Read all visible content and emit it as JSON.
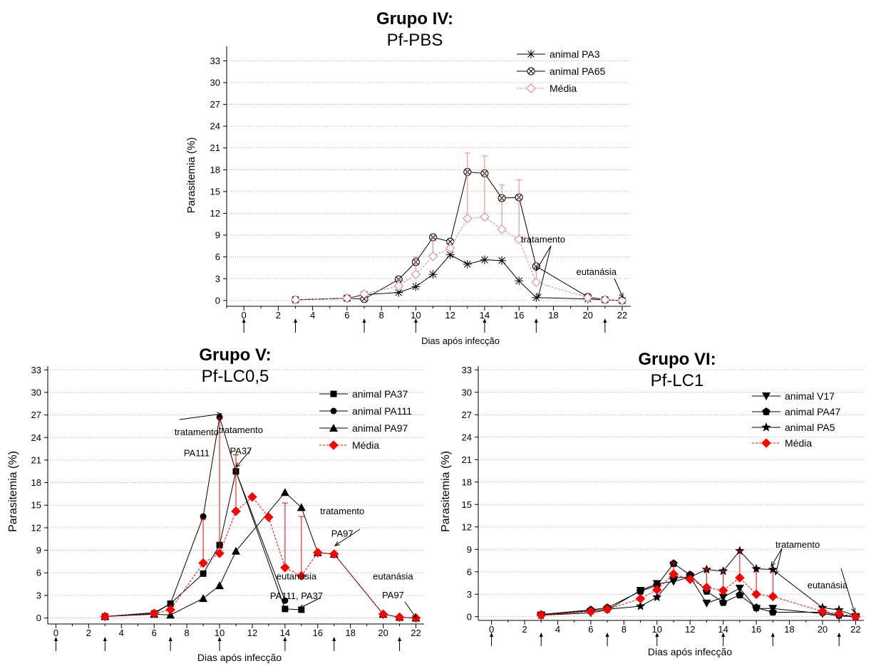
{
  "chart_data": [
    {
      "type": "line",
      "title": "Grupo IV:",
      "subtitle": "Pf-PBS",
      "xlabel": "Dias após infecção",
      "ylabel": "Parasitemia  (%)",
      "xlim": [
        -1,
        22.5
      ],
      "ylim": [
        -0.8,
        35
      ],
      "xticks": [
        0,
        2,
        4,
        6,
        8,
        10,
        12,
        14,
        16,
        18,
        20,
        22
      ],
      "yticks": [
        0,
        3,
        6,
        9,
        12,
        15,
        18,
        21,
        24,
        27,
        30,
        33
      ],
      "grid": true,
      "legend_position": "top-right",
      "arrow_days": [
        0,
        3,
        7,
        10,
        14,
        17,
        21
      ],
      "series": [
        {
          "name": "animal PA3",
          "marker": "asterisk",
          "color": "#000000",
          "style": "solid",
          "x": [
            3,
            6,
            7,
            9,
            10,
            11,
            12,
            13,
            14,
            15,
            16,
            17,
            20,
            21,
            22
          ],
          "y": [
            0.1,
            0.3,
            0.8,
            1.1,
            1.9,
            3.6,
            6.3,
            5.0,
            5.6,
            5.5,
            2.7,
            0.4,
            0.2,
            0.1,
            0.0
          ]
        },
        {
          "name": "animal PA65",
          "marker": "circle-x",
          "color": "#000000",
          "style": "solid",
          "x": [
            3,
            6,
            7,
            9,
            10,
            11,
            12,
            13,
            14,
            15,
            16,
            17,
            20,
            21,
            22
          ],
          "y": [
            0.1,
            0.3,
            0.2,
            2.9,
            5.3,
            8.7,
            8.1,
            17.7,
            17.5,
            14.1,
            14.2,
            4.7,
            0.5,
            0.1,
            0.0
          ]
        },
        {
          "name": "Média",
          "marker": "diamond-open",
          "color": "#f08080",
          "style": "dotted",
          "x": [
            3,
            6,
            7,
            9,
            10,
            11,
            12,
            13,
            14,
            15,
            16,
            17,
            20,
            21,
            22
          ],
          "y": [
            0.1,
            0.3,
            0.9,
            2.0,
            3.6,
            6.1,
            7.2,
            11.3,
            11.5,
            9.8,
            8.4,
            2.5,
            0.4,
            0.1,
            0.0
          ],
          "error": [
            0,
            0,
            0,
            0.9,
            2.4,
            2.6,
            0,
            9.0,
            8.4,
            6.1,
            8.2,
            2.2,
            0,
            0,
            0
          ]
        }
      ],
      "annotations": [
        {
          "text": "tratamento",
          "x": 17.4,
          "y": 8.0
        },
        {
          "text": "eutanásia",
          "x": 20.5,
          "y": 3.5
        }
      ]
    },
    {
      "type": "line",
      "title": "Grupo V:",
      "subtitle": "Pf-LC0,5",
      "xlabel": "Dias após infecção",
      "ylabel": "Parasitemia (%)",
      "xlim": [
        -0.5,
        22.5
      ],
      "ylim": [
        -0.8,
        33.5
      ],
      "xticks": [
        0,
        2,
        4,
        6,
        8,
        10,
        12,
        14,
        16,
        18,
        20,
        22
      ],
      "yticks": [
        0,
        3,
        6,
        9,
        12,
        15,
        18,
        21,
        24,
        27,
        30,
        33
      ],
      "grid": true,
      "legend_position": "top-right",
      "arrow_days": [
        0,
        3,
        7,
        10,
        14,
        17,
        21
      ],
      "series": [
        {
          "name": "animal PA37",
          "marker": "square",
          "color": "#000000",
          "style": "solid",
          "x": [
            3,
            6,
            7,
            9,
            10,
            11,
            14,
            15
          ],
          "y": [
            0.2,
            0.6,
            1.9,
            5.9,
            9.7,
            19.5,
            1.2,
            1.1
          ]
        },
        {
          "name": "animal PA111",
          "marker": "circle",
          "color": "#000000",
          "style": "solid",
          "x": [
            3,
            6,
            7,
            9,
            10,
            11,
            14
          ],
          "y": [
            0.2,
            0.7,
            1.9,
            13.5,
            26.7,
            19.5,
            2.3
          ]
        },
        {
          "name": "animal PA97",
          "marker": "triangle",
          "color": "#000000",
          "style": "solid",
          "x": [
            3,
            6,
            7,
            9,
            10,
            11,
            14,
            15,
            16,
            17,
            20,
            21,
            22
          ],
          "y": [
            0.2,
            0.5,
            0.4,
            2.6,
            4.3,
            8.9,
            16.7,
            14.7,
            8.7,
            8.5,
            0.5,
            0.1,
            0.0
          ]
        },
        {
          "name": "Média",
          "marker": "diamond",
          "color": "#ff0000",
          "style": "dotted",
          "x": [
            3,
            6,
            7,
            9,
            10,
            11,
            12,
            13,
            14,
            15,
            16,
            17,
            20,
            21,
            22
          ],
          "y": [
            0.2,
            0.6,
            1.1,
            7.3,
            8.6,
            14.2,
            16.1,
            13.4,
            6.7,
            5.6,
            8.7,
            8.5,
            0.5,
            0.1,
            0.0
          ],
          "error": [
            0,
            0,
            0,
            5.8,
            17.9,
            7.5,
            0,
            0,
            8.6,
            7.9,
            0,
            0,
            0,
            0,
            0
          ]
        }
      ],
      "annotations": [
        {
          "text": "tratamento",
          "x": 8.6,
          "y": 24.3
        },
        {
          "text": "PA111",
          "x": 8.6,
          "y": 21.5
        },
        {
          "text": "tratamento",
          "x": 11.3,
          "y": 24.6
        },
        {
          "text": "PA37",
          "x": 11.3,
          "y": 21.8
        },
        {
          "text": "tratamento",
          "x": 17.5,
          "y": 13.8
        },
        {
          "text": "PA97",
          "x": 17.5,
          "y": 10.8
        },
        {
          "text": "eutanásia",
          "x": 14.7,
          "y": 5.1
        },
        {
          "text": "PA111, PA37",
          "x": 14.7,
          "y": 2.5
        },
        {
          "text": "eutanásia",
          "x": 20.6,
          "y": 5.1
        },
        {
          "text": "PA97",
          "x": 20.6,
          "y": 2.6
        }
      ]
    },
    {
      "type": "line",
      "title": "Grupo VI:",
      "subtitle": "Pf-LC1",
      "xlabel": "Dias após infecção",
      "ylabel": "Parasitemia (%)",
      "xlim": [
        -0.8,
        22.5
      ],
      "ylim": [
        -0.5,
        33.5
      ],
      "xticks": [
        0,
        2,
        4,
        6,
        8,
        10,
        12,
        14,
        16,
        18,
        20,
        22
      ],
      "yticks": [
        0,
        3,
        6,
        9,
        12,
        15,
        18,
        21,
        24,
        27,
        30,
        33
      ],
      "grid": true,
      "legend_position": "top-right",
      "arrow_days": [
        0,
        3,
        7,
        10,
        14,
        17,
        21
      ],
      "series": [
        {
          "name": "animal V17",
          "marker": "triangle-down",
          "color": "#000000",
          "style": "solid",
          "x": [
            3,
            6,
            7,
            9,
            10,
            11,
            12,
            13,
            14,
            15,
            16,
            17,
            20,
            21,
            22
          ],
          "y": [
            0.2,
            0.5,
            0.9,
            3.5,
            4.4,
            4.7,
            5.3,
            1.8,
            2.6,
            3.8,
            1.1,
            1.1,
            0.4,
            0.1,
            0.0
          ]
        },
        {
          "name": "animal PA47",
          "marker": "pentagon",
          "color": "#000000",
          "style": "solid",
          "x": [
            3,
            6,
            7,
            9,
            10,
            11,
            12,
            13,
            14,
            15,
            16,
            17,
            20,
            21,
            22
          ],
          "y": [
            0.3,
            0.9,
            1.2,
            3.4,
            4.2,
            7.1,
            5.6,
            3.4,
            1.9,
            2.9,
            1.2,
            0.6,
            0.6,
            0.2,
            0.0
          ]
        },
        {
          "name": "animal PA5",
          "marker": "star",
          "color": "#000000",
          "style": "solid",
          "x": [
            3,
            6,
            7,
            9,
            10,
            11,
            12,
            13,
            14,
            15,
            16,
            17,
            20,
            21,
            22
          ],
          "y": [
            0.2,
            0.8,
            1.0,
            1.4,
            2.6,
            5.2,
            5.3,
            6.3,
            6.1,
            8.8,
            6.4,
            6.3,
            1.2,
            0.9,
            0.1
          ]
        },
        {
          "name": "Média",
          "marker": "diamond",
          "color": "#ff0000",
          "style": "dotted",
          "x": [
            3,
            6,
            7,
            9,
            10,
            11,
            12,
            13,
            14,
            15,
            16,
            17,
            20,
            21,
            22
          ],
          "y": [
            0.2,
            0.7,
            1.0,
            2.4,
            3.6,
            5.7,
            5.0,
            3.9,
            3.5,
            5.2,
            3.0,
            2.7,
            0.7,
            0.4,
            0.0
          ],
          "error": [
            0,
            0,
            0,
            0,
            0,
            1.5,
            0,
            2.5,
            2.6,
            3.6,
            3.0,
            3.3,
            0,
            0,
            0
          ]
        }
      ],
      "annotations": [
        {
          "text": "tratamento",
          "x": 18.5,
          "y": 9.2
        },
        {
          "text": "eutanásia",
          "x": 20.3,
          "y": 3.8
        }
      ]
    }
  ]
}
